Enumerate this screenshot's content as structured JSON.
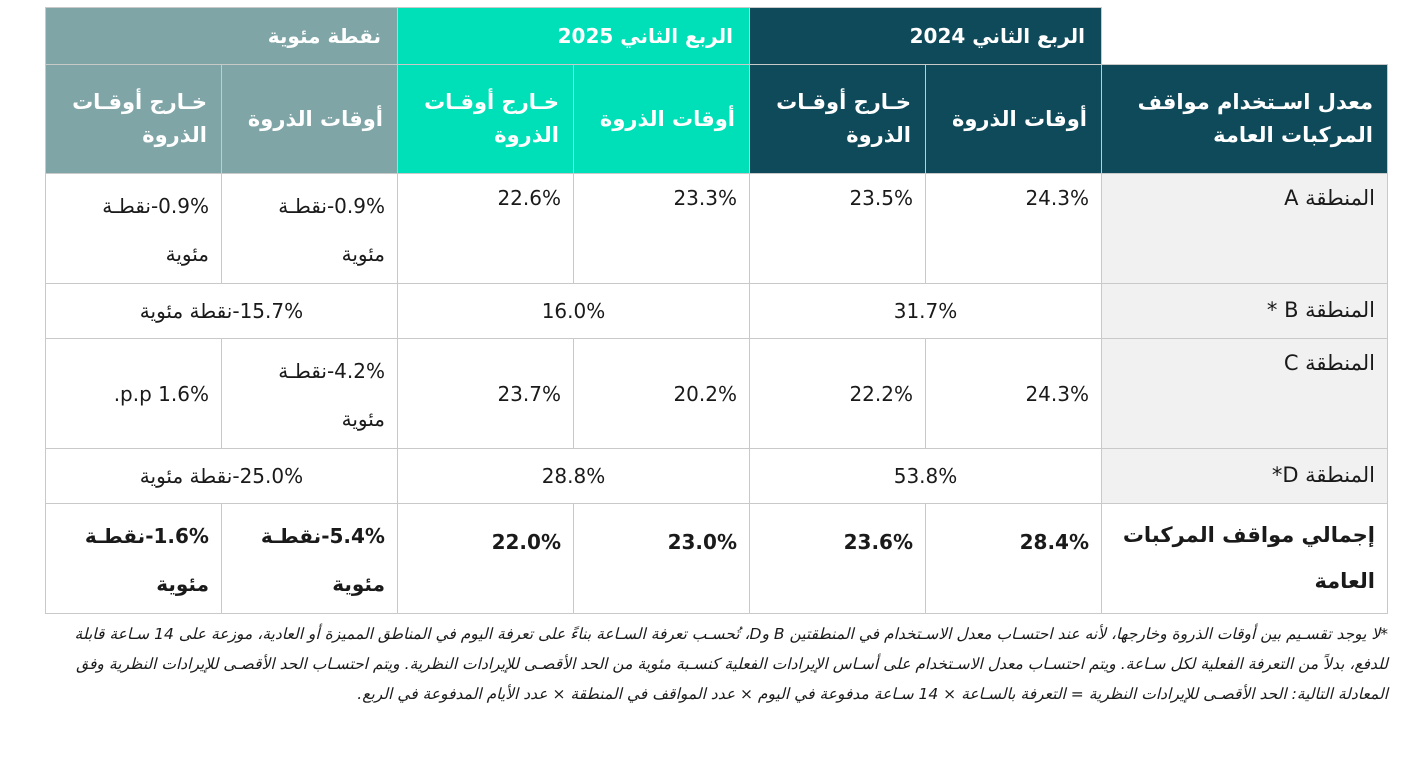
{
  "header": {
    "q2_2024": "الربع الثاني 2024",
    "q2_2025": "الربع الثاني 2025",
    "pp": "نقطة مئوية",
    "metric": "معدل اسـتخدام مواقف المركبات العامة",
    "peak": "أوقات الذروة",
    "offpeak": "خـارج أوقـات الذروة"
  },
  "rows": [
    {
      "label": "المنطقة A",
      "q24_peak": "24.3%",
      "q24_off": "23.5%",
      "q25_peak": "23.3%",
      "q25_off": "22.6%",
      "pp_peak": "0.9%-نقطـة مئوية",
      "pp_off": "0.9%-نقطـة مئوية"
    },
    {
      "label": "المنطقة B *",
      "q24": "31.7%",
      "q25": "16.0%",
      "pp": "15.7%-نقطة مئوية"
    },
    {
      "label": "المنطقة  C",
      "q24_peak": "24.3%",
      "q24_off": "22.2%",
      "q25_peak": "20.2%",
      "q25_off": "23.7%",
      "pp_peak": "4.2%-نقطـة مئوية",
      "pp_off": "1.6% p.p."
    },
    {
      "label": "المنطقة D*",
      "q24": "53.8%",
      "q25": "28.8%",
      "pp": "25.0%-نقطة مئوية"
    },
    {
      "label": "إجمالي مواقف المركبات العامة",
      "q24_peak": "28.4%",
      "q24_off": "23.6%",
      "q25_peak": "23.0%",
      "q25_off": "22.0%",
      "pp_peak": "5.4%-نقطـة مئوية",
      "pp_off": "1.6%-نقطـة مئوية"
    }
  ],
  "footnote": "*لا يوجد تقسـيم بين أوقات الذروة وخارجها، لأنه عند احتسـاب معدل الاسـتخدام في المنطقتين B وD، تُحسـب تعرفة السـاعة بناءً على تعرفة اليوم في المناطق المميزة أو العادية، موزعة على 14 سـاعة قابلة للدفع، بدلاً من التعرفة الفعلية لكل سـاعة. ويتم احتسـاب معدل الاسـتخدام على أسـاس الإيرادات الفعلية كنسـبة مئوية من الحد الأقصـى للإيرادات النظرية. ويتم احتسـاب الحد الأقصـى للإيرادات النظرية وفق المعادلة التالية: الحد الأقصـى للإيرادات النظرية = التعرفة بالسـاعة × 14 سـاعة مدفوعة في اليوم × عدد المواقف في المنطقة × عدد الأيام المدفوعة في الربع."
}
